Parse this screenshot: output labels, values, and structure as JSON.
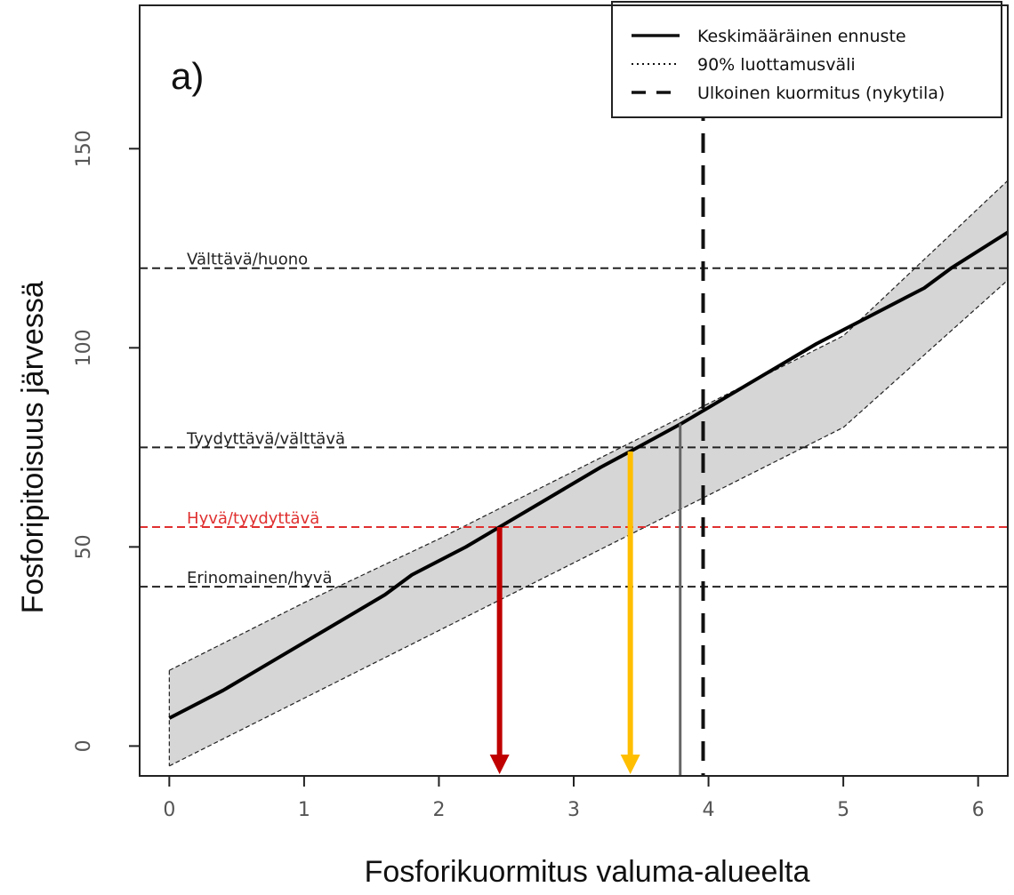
{
  "chart_data": {
    "type": "line",
    "panel_label": "a)",
    "xlabel": "Fosforikuormitus valuma-alueelta",
    "ylabel": "Fosforipitoisuus järvessä",
    "xlim": [
      -0.22,
      6.22
    ],
    "ylim": [
      -7.5,
      186
    ],
    "x_ticks": [
      0,
      1,
      2,
      3,
      4,
      5,
      6
    ],
    "y_ticks": [
      0,
      50,
      100,
      150
    ],
    "series": [
      {
        "name": "Keskimääräinen ennuste",
        "style": "solid",
        "x": [
          0,
          0.4,
          0.8,
          1.2,
          1.6,
          1.8,
          2.2,
          2.45,
          2.8,
          3.2,
          3.42,
          3.8,
          4.0,
          4.4,
          4.8,
          5.2,
          5.6,
          5.8,
          6.22
        ],
        "y": [
          7,
          14,
          22,
          30,
          38,
          43,
          50,
          55,
          62,
          70,
          74,
          81,
          85,
          93,
          101,
          108,
          115,
          120,
          129
        ]
      }
    ],
    "band": {
      "name": "90% luottamusväli",
      "x": [
        0,
        1,
        2,
        3,
        4,
        5,
        6.22
      ],
      "upper": [
        19,
        36,
        52,
        69,
        86,
        103,
        142
      ],
      "lower": [
        -5,
        12,
        29,
        46,
        63,
        80,
        117
      ]
    },
    "reference_lines": [
      {
        "label": "Välttävä/huono",
        "y": 120,
        "color": "#222222",
        "label_color": "#222222"
      },
      {
        "label": "Tyydyttävä/välttävä",
        "y": 75,
        "color": "#222222",
        "label_color": "#222222"
      },
      {
        "label": "Hyvä/tyydyttävä",
        "y": 55,
        "color": "#e03030",
        "label_color": "#e03030"
      },
      {
        "label": "Erinomainen/hyvä",
        "y": 40,
        "color": "#222222",
        "label_color": "#222222"
      }
    ],
    "vertical_lines": [
      {
        "name": "Ulkoinen kuormitus (nykytila)",
        "x": 3.96,
        "style": "dashed",
        "color": "#111111"
      },
      {
        "x": 3.79,
        "style": "solid",
        "color": "#666666",
        "y_top": 81
      }
    ],
    "arrows": [
      {
        "x": 2.45,
        "from_y": 55,
        "color": "#c00000"
      },
      {
        "x": 3.42,
        "from_y": 74,
        "color": "#ffbf00"
      }
    ],
    "legend": {
      "position": "top-right",
      "entries": [
        {
          "label": "Keskimääräinen ennuste",
          "style": "solid"
        },
        {
          "label": "90% luottamusväli",
          "style": "dotted"
        },
        {
          "label": "Ulkoinen kuormitus (nykytila)",
          "style": "dashed"
        }
      ]
    },
    "colors": {
      "band_fill": "#d6d6d6",
      "mean_line": "#000000",
      "frame": "#222222"
    }
  }
}
